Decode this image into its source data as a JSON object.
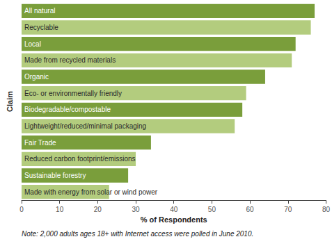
{
  "chart_data": {
    "type": "bar",
    "orientation": "horizontal",
    "categories": [
      "All natural",
      "Recyclable",
      "Local",
      "Made from recycled materials",
      "Organic",
      "Eco- or environmentally friendly",
      "Biodegradable/compostable",
      "Lightweight/reduced/minimal packaging",
      "Fair Trade",
      "Reduced carbon footprint/emissions",
      "Sustainable forestry",
      "Made with energy from solar or wind power"
    ],
    "values": [
      77,
      76,
      72,
      71,
      64,
      59,
      58,
      56,
      34,
      30,
      28,
      23
    ],
    "colors": [
      "#7a9e3b",
      "#b3cc7e",
      "#7a9e3b",
      "#b3cc7e",
      "#7a9e3b",
      "#b3cc7e",
      "#7a9e3b",
      "#b3cc7e",
      "#7a9e3b",
      "#b3cc7e",
      "#7a9e3b",
      "#b3cc7e"
    ],
    "xlim": [
      0,
      80
    ],
    "xticks": [
      0,
      10,
      20,
      30,
      40,
      50,
      60,
      70,
      80
    ],
    "x_label": "% of Respondents",
    "y_label": "Claim",
    "annotation": "Note: 2,000 adults ages 18+ with Internet access were polled in June 2010.",
    "grid": false,
    "data_labels": false
  }
}
